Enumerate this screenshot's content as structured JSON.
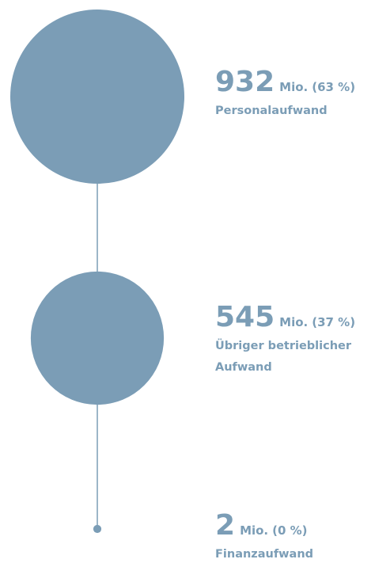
{
  "chart_data": {
    "type": "proportional-circles",
    "values": [
      932,
      545,
      2
    ],
    "unit": "Mio.",
    "share_labels": [
      "(63 %)",
      "(37 %)",
      "(0 %)"
    ],
    "labels": [
      [
        "Personalaufwand"
      ],
      [
        "Übriger betrieblicher",
        "Aufwand"
      ],
      [
        "Finanzaufwand"
      ]
    ],
    "color": "#7b9db6"
  }
}
